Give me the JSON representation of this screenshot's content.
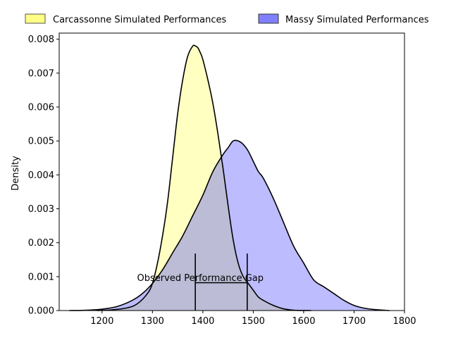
{
  "chart_data": {
    "type": "area",
    "ylabel": "Density",
    "xlabel": "",
    "xlim": [
      1115,
      1800
    ],
    "ylim": [
      0,
      0.00818
    ],
    "x_ticks": [
      1200,
      1300,
      1400,
      1500,
      1600,
      1700,
      1800
    ],
    "y_ticks": [
      0.0,
      0.001,
      0.002,
      0.003,
      0.004,
      0.005,
      0.006,
      0.007,
      0.008
    ],
    "y_tick_labels": [
      "0.000",
      "0.001",
      "0.002",
      "0.003",
      "0.004",
      "0.005",
      "0.006",
      "0.007",
      "0.008"
    ],
    "legend_position": "top, above plot, two columns",
    "series": [
      {
        "name": "Carcassonne Simulated Performances",
        "color": "#ffff66",
        "alpha": 0.4,
        "x": [
          1190,
          1220,
          1250,
          1270,
          1290,
          1300,
          1310,
          1320,
          1330,
          1340,
          1350,
          1360,
          1370,
          1380,
          1385,
          1390,
          1395,
          1400,
          1410,
          1420,
          1430,
          1440,
          1450,
          1460,
          1470,
          1480,
          1490,
          1500,
          1510,
          1520,
          1540,
          1560,
          1580,
          1615
        ],
        "y": [
          0.0,
          2e-05,
          8e-05,
          0.0002,
          0.0005,
          0.0008,
          0.0014,
          0.0022,
          0.0032,
          0.0045,
          0.0058,
          0.0068,
          0.0075,
          0.0078,
          0.0078,
          0.00775,
          0.0076,
          0.0074,
          0.0068,
          0.0061,
          0.0052,
          0.0042,
          0.0031,
          0.0021,
          0.0014,
          0.001,
          0.0008,
          0.0006,
          0.0004,
          0.0003,
          0.00015,
          5e-05,
          1e-05,
          0.0
        ]
      },
      {
        "name": "Massy Simulated Performances",
        "color": "#3333ff",
        "alpha": 0.33,
        "x": [
          1135,
          1170,
          1200,
          1230,
          1260,
          1280,
          1300,
          1320,
          1340,
          1360,
          1380,
          1400,
          1420,
          1440,
          1450,
          1460,
          1470,
          1480,
          1490,
          1500,
          1510,
          1520,
          1540,
          1560,
          1580,
          1600,
          1620,
          1640,
          1660,
          1680,
          1700,
          1720,
          1740,
          1770
        ],
        "y": [
          0.0,
          1e-05,
          4e-05,
          0.00012,
          0.0003,
          0.0005,
          0.0008,
          0.0012,
          0.0017,
          0.0022,
          0.0028,
          0.0034,
          0.0041,
          0.0046,
          0.0048,
          0.005,
          0.005,
          0.0049,
          0.0047,
          0.0044,
          0.0041,
          0.0039,
          0.0033,
          0.0026,
          0.0019,
          0.0014,
          0.0009,
          0.0007,
          0.0005,
          0.0003,
          0.00015,
          7e-05,
          3e-05,
          0.0
        ]
      }
    ],
    "annotation": {
      "text": "Observed Performance Gap",
      "x_left": 1385,
      "x_right": 1488,
      "y_bar": 0.00082,
      "y_cap_top": 0.00168,
      "text_x": 1395,
      "text_y": 0.00095
    }
  }
}
